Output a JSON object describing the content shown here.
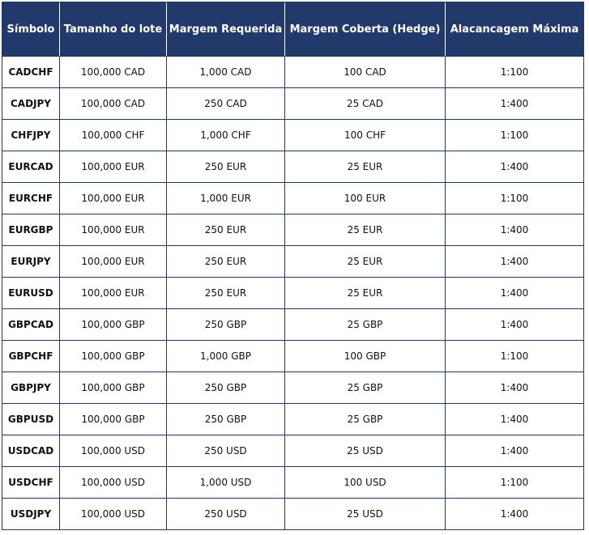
{
  "headers": [
    "Símbolo",
    "Tamanho do lote",
    "Margem Requerida",
    "Margem Coberta (Hedge)",
    "Alacancagem Máxima"
  ],
  "rows": [
    [
      "CADCHF",
      "100,000 CAD",
      "1,000 CAD",
      "100 CAD",
      "1:100"
    ],
    [
      "CADJPY",
      "100,000 CAD",
      "250 CAD",
      "25 CAD",
      "1:400"
    ],
    [
      "CHFJPY",
      "100,000 CHF",
      "1,000 CHF",
      "100 CHF",
      "1:100"
    ],
    [
      "EURCAD",
      "100,000 EUR",
      "250 EUR",
      "25 EUR",
      "1:400"
    ],
    [
      "EURCHF",
      "100,000 EUR",
      "1,000 EUR",
      "100 EUR",
      "1:100"
    ],
    [
      "EURGBP",
      "100,000 EUR",
      "250 EUR",
      "25 EUR",
      "1:400"
    ],
    [
      "EURJPY",
      "100,000 EUR",
      "250 EUR",
      "25 EUR",
      "1:400"
    ],
    [
      "EURUSD",
      "100,000 EUR",
      "250 EUR",
      "25 EUR",
      "1:400"
    ],
    [
      "GBPCAD",
      "100,000 GBP",
      "250 GBP",
      "25 GBP",
      "1:400"
    ],
    [
      "GBPCHF",
      "100,000 GBP",
      "1,000 GBP",
      "100 GBP",
      "1:100"
    ],
    [
      "GBPJPY",
      "100,000 GBP",
      "250 GBP",
      "25 GBP",
      "1:400"
    ],
    [
      "GBPUSD",
      "100,000 GBP",
      "250 GBP",
      "25 GBP",
      "1:400"
    ],
    [
      "USDCAD",
      "100,000 USD",
      "250 USD",
      "25 USD",
      "1:400"
    ],
    [
      "USDCHF",
      "100,000 USD",
      "1,000 USD",
      "100 USD",
      "1:100"
    ],
    [
      "USDJPY",
      "100,000 USD",
      "250 USD",
      "25 USD",
      "1:400"
    ]
  ],
  "colors": {
    "header_bg": "#213a6b",
    "header_text": "#ffffff",
    "border": "#1f3864"
  }
}
